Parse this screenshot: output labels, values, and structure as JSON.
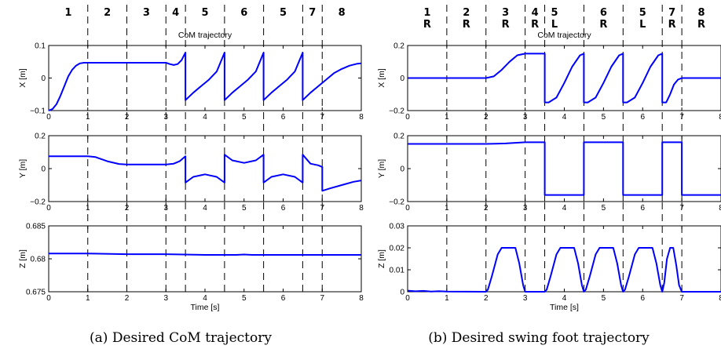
{
  "figure": {
    "captions": [
      "(a) Desired CoM trajectory",
      "(b) Desired swing foot trajectory"
    ],
    "line_color": "#0000ff"
  },
  "chart_data": [
    {
      "type": "line",
      "title": "CoM trajectory",
      "xlabel": "",
      "ylabel": "X [m]",
      "xlim": [
        0,
        8
      ],
      "ylim": [
        -0.1,
        0.1
      ],
      "xticks": [
        "0",
        "1",
        "2",
        "3",
        "4",
        "5",
        "6",
        "7",
        "8"
      ],
      "yticks": [
        "0.1",
        "0",
        "−0.1"
      ],
      "phase_boundaries": [
        1,
        2,
        3,
        3.5,
        4.5,
        5.5,
        6.5,
        7
      ],
      "phase_labels": [
        {
          "x": 0.5,
          "label": "1"
        },
        {
          "x": 1.5,
          "label": "2"
        },
        {
          "x": 2.5,
          "label": "3"
        },
        {
          "x": 3.25,
          "label": "4"
        },
        {
          "x": 4.0,
          "label": "5"
        },
        {
          "x": 5.0,
          "label": "6"
        },
        {
          "x": 6.0,
          "label": "5"
        },
        {
          "x": 6.75,
          "label": "7"
        },
        {
          "x": 7.5,
          "label": "8"
        }
      ],
      "series": [
        {
          "x": [
            0,
            0.1,
            0.2,
            0.3,
            0.4,
            0.5,
            0.6,
            0.7,
            0.8,
            0.9,
            1,
            1.5,
            2,
            2.5,
            3,
            3.1,
            3.2,
            3.3,
            3.4,
            3.5,
            3.5,
            3.7,
            3.9,
            4.1,
            4.3,
            4.5,
            4.5,
            4.7,
            4.9,
            5.1,
            5.3,
            5.5,
            5.5,
            5.7,
            5.9,
            6.1,
            6.3,
            6.5,
            6.5,
            6.7,
            6.9,
            7.1,
            7.3,
            7.5,
            7.7,
            7.9,
            8
          ],
          "y": [
            -0.1,
            -0.095,
            -0.08,
            -0.055,
            -0.025,
            0.005,
            0.025,
            0.038,
            0.045,
            0.047,
            0.047,
            0.047,
            0.047,
            0.047,
            0.047,
            0.043,
            0.04,
            0.043,
            0.055,
            0.078,
            -0.068,
            -0.045,
            -0.025,
            -0.005,
            0.02,
            0.078,
            -0.068,
            -0.045,
            -0.025,
            -0.005,
            0.02,
            0.078,
            -0.068,
            -0.045,
            -0.025,
            -0.005,
            0.02,
            0.078,
            -0.068,
            -0.045,
            -0.025,
            -0.005,
            0.015,
            0.028,
            0.038,
            0.044,
            0.045
          ]
        }
      ]
    },
    {
      "type": "line",
      "title": "",
      "xlabel": "",
      "ylabel": "Y [m]",
      "xlim": [
        0,
        8
      ],
      "ylim": [
        -0.2,
        0.2
      ],
      "xticks": [
        "0",
        "1",
        "2",
        "3",
        "4",
        "5",
        "6",
        "7",
        "8"
      ],
      "yticks": [
        "0.2",
        "0",
        "−0.2"
      ],
      "phase_boundaries": [
        1,
        2,
        3,
        3.5,
        4.5,
        5.5,
        6.5,
        7
      ],
      "series": [
        {
          "x": [
            0,
            0.5,
            1,
            1.2,
            1.5,
            1.8,
            2,
            2.5,
            3,
            3.2,
            3.35,
            3.5,
            3.5,
            3.7,
            4,
            4.3,
            4.5,
            4.5,
            4.7,
            5,
            5.3,
            5.5,
            5.5,
            5.7,
            6,
            6.3,
            6.5,
            6.5,
            6.7,
            6.9,
            7,
            7,
            7.2,
            7.5,
            7.8,
            8
          ],
          "y": [
            0.075,
            0.075,
            0.075,
            0.07,
            0.045,
            0.028,
            0.025,
            0.025,
            0.025,
            0.03,
            0.045,
            0.075,
            -0.085,
            -0.05,
            -0.035,
            -0.05,
            -0.085,
            0.085,
            0.05,
            0.035,
            0.05,
            0.085,
            -0.085,
            -0.05,
            -0.035,
            -0.05,
            -0.085,
            0.085,
            0.03,
            0.02,
            0.01,
            -0.135,
            -0.12,
            -0.1,
            -0.08,
            -0.072
          ]
        }
      ]
    },
    {
      "type": "line",
      "title": "",
      "xlabel": "Time [s]",
      "ylabel": "Z [m]",
      "xlim": [
        0,
        8
      ],
      "ylim": [
        0.675,
        0.685
      ],
      "xticks": [
        "0",
        "1",
        "2",
        "3",
        "4",
        "5",
        "6",
        "7",
        "8"
      ],
      "yticks": [
        "0.685",
        "0.68",
        "0.675"
      ],
      "phase_boundaries": [
        1,
        2,
        3,
        3.5,
        4.5,
        5.5,
        6.5,
        7
      ],
      "series": [
        {
          "x": [
            0,
            1,
            2,
            3,
            4,
            4.8,
            5,
            5.2,
            6,
            7,
            8
          ],
          "y": [
            0.6808,
            0.6808,
            0.6807,
            0.6807,
            0.6806,
            0.6806,
            0.68065,
            0.6806,
            0.6806,
            0.6806,
            0.6806
          ]
        }
      ]
    },
    {
      "type": "line",
      "title": "CoM trajectory",
      "xlabel": "",
      "ylabel": "X [m]",
      "xlim": [
        0,
        8
      ],
      "ylim": [
        -0.2,
        0.2
      ],
      "xticks": [
        "0",
        "1",
        "2",
        "3",
        "4",
        "5",
        "6",
        "7",
        "8"
      ],
      "yticks": [
        "0.2",
        "0",
        "−0.2"
      ],
      "phase_boundaries": [
        1,
        2,
        3,
        3.5,
        4.5,
        5.5,
        6.5,
        7
      ],
      "phase_labels": [
        {
          "x": 0.5,
          "label": "1",
          "foot": "R"
        },
        {
          "x": 1.5,
          "label": "2",
          "foot": "R"
        },
        {
          "x": 2.5,
          "label": "3",
          "foot": "R"
        },
        {
          "x": 3.25,
          "label": "4",
          "foot": "R"
        },
        {
          "x": 3.75,
          "label": "5",
          "foot": "L"
        },
        {
          "x": 5.0,
          "label": "6",
          "foot": "R"
        },
        {
          "x": 6.0,
          "label": "5",
          "foot": "L"
        },
        {
          "x": 6.75,
          "label": "7",
          "foot": "R"
        },
        {
          "x": 7.5,
          "label": "8",
          "foot": "R"
        }
      ],
      "series": [
        {
          "x": [
            0,
            1,
            2,
            2.2,
            2.4,
            2.6,
            2.8,
            3,
            3.5,
            3.5,
            3.6,
            3.8,
            4,
            4.2,
            4.4,
            4.5,
            4.5,
            4.6,
            4.8,
            5,
            5.2,
            5.4,
            5.5,
            5.5,
            5.6,
            5.8,
            6,
            6.2,
            6.4,
            6.5,
            6.5,
            6.6,
            6.7,
            6.8,
            6.9,
            7,
            8
          ],
          "y": [
            0,
            0,
            0,
            0.01,
            0.05,
            0.1,
            0.14,
            0.15,
            0.15,
            -0.15,
            -0.15,
            -0.12,
            -0.03,
            0.07,
            0.14,
            0.15,
            -0.15,
            -0.15,
            -0.12,
            -0.03,
            0.07,
            0.14,
            0.15,
            -0.15,
            -0.15,
            -0.12,
            -0.03,
            0.07,
            0.14,
            0.15,
            -0.15,
            -0.15,
            -0.1,
            -0.04,
            -0.01,
            0,
            0
          ]
        }
      ]
    },
    {
      "type": "line",
      "title": "",
      "xlabel": "",
      "ylabel": "Y [m]",
      "xlim": [
        0,
        8
      ],
      "ylim": [
        -0.2,
        0.2
      ],
      "xticks": [
        "0",
        "1",
        "2",
        "3",
        "4",
        "5",
        "6",
        "7",
        "8"
      ],
      "yticks": [
        "0.2",
        "0",
        "−0.2"
      ],
      "phase_boundaries": [
        1,
        2,
        3,
        3.5,
        4.5,
        5.5,
        6.5,
        7
      ],
      "series": [
        {
          "x": [
            0,
            1,
            2,
            2.5,
            3,
            3.5,
            3.5,
            4.5,
            4.5,
            5.5,
            5.5,
            6.5,
            6.5,
            7,
            7,
            8
          ],
          "y": [
            0.15,
            0.15,
            0.15,
            0.153,
            0.16,
            0.16,
            -0.16,
            -0.16,
            0.16,
            0.16,
            -0.16,
            -0.16,
            0.16,
            0.16,
            -0.16,
            -0.16
          ]
        }
      ]
    },
    {
      "type": "line",
      "title": "",
      "xlabel": "Time [s]",
      "ylabel": "Z [m]",
      "xlim": [
        0,
        8
      ],
      "ylim": [
        0,
        0.03
      ],
      "xticks": [
        "0",
        "1",
        "2",
        "3",
        "4",
        "5",
        "6",
        "7",
        "8"
      ],
      "yticks": [
        "0.03",
        "0.02",
        "0.01",
        "0"
      ],
      "phase_boundaries": [
        1,
        2,
        3,
        3.5,
        4.5,
        5.5,
        6.5,
        7
      ],
      "series": [
        {
          "x": [
            0,
            0.2,
            0.4,
            0.6,
            0.8,
            1,
            2,
            2.05,
            2.15,
            2.3,
            2.4,
            2.6,
            2.75,
            2.85,
            2.95,
            3,
            3.5,
            3.55,
            3.65,
            3.8,
            3.9,
            4.1,
            4.25,
            4.35,
            4.45,
            4.5,
            4.55,
            4.65,
            4.8,
            4.9,
            5.1,
            5.25,
            5.35,
            5.45,
            5.5,
            5.55,
            5.65,
            5.8,
            5.9,
            6.1,
            6.25,
            6.35,
            6.45,
            6.5,
            6.55,
            6.62,
            6.7,
            6.78,
            6.86,
            6.93,
            7,
            8
          ],
          "y": [
            0.0005,
            0.0002,
            0.0004,
            0.0001,
            0.0003,
            0.0001,
            0,
            0.001,
            0.007,
            0.017,
            0.02,
            0.02,
            0.02,
            0.013,
            0.003,
            0,
            0,
            0.001,
            0.007,
            0.017,
            0.02,
            0.02,
            0.02,
            0.013,
            0.003,
            0,
            0.001,
            0.007,
            0.017,
            0.02,
            0.02,
            0.02,
            0.013,
            0.003,
            0,
            0.001,
            0.007,
            0.017,
            0.02,
            0.02,
            0.02,
            0.013,
            0.003,
            0,
            0.004,
            0.015,
            0.02,
            0.02,
            0.012,
            0.003,
            0,
            0
          ]
        }
      ]
    }
  ]
}
